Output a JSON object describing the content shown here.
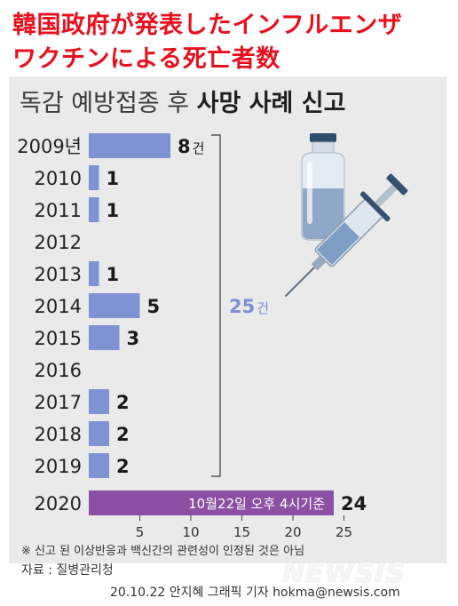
{
  "headline": {
    "line1": "韓国政府が発表したインフルエンザ",
    "line2": "ワクチンによる死亡者数"
  },
  "subtitle": {
    "prefix": "독감 예방접종 후 ",
    "bold": "사망 사례 신고"
  },
  "chart_data": {
    "type": "bar",
    "orientation": "horizontal",
    "categories": [
      "2009년",
      "2010",
      "2011",
      "2012",
      "2013",
      "2014",
      "2015",
      "2016",
      "2017",
      "2018",
      "2019",
      "2020"
    ],
    "values": [
      8,
      1,
      1,
      0,
      1,
      5,
      3,
      0,
      2,
      2,
      2,
      24
    ],
    "value_labels": [
      "8",
      "1",
      "1",
      "",
      "1",
      "5",
      "3",
      "",
      "2",
      "2",
      "2",
      "24"
    ],
    "unit_first": "건",
    "xticks": [
      5,
      10,
      15,
      20,
      25
    ],
    "xlim": [
      0,
      25
    ],
    "bracket_label": "25",
    "bracket_unit": "건",
    "highlight_note": "10월22일 오후 4시기준",
    "colors": {
      "bar": "#7f93d3",
      "highlight": "#8b4fa3",
      "bracket_text": "#7d8fd0"
    }
  },
  "footnote": "※ 신고 된 이상반응과 백신간의 관련성이 인정된 것은 아님",
  "source": "자료 : 질병관리청",
  "credit": "20.10.22 안지혜 그래픽 기자 hokma@newsis.com",
  "watermark": "NEWSIS"
}
